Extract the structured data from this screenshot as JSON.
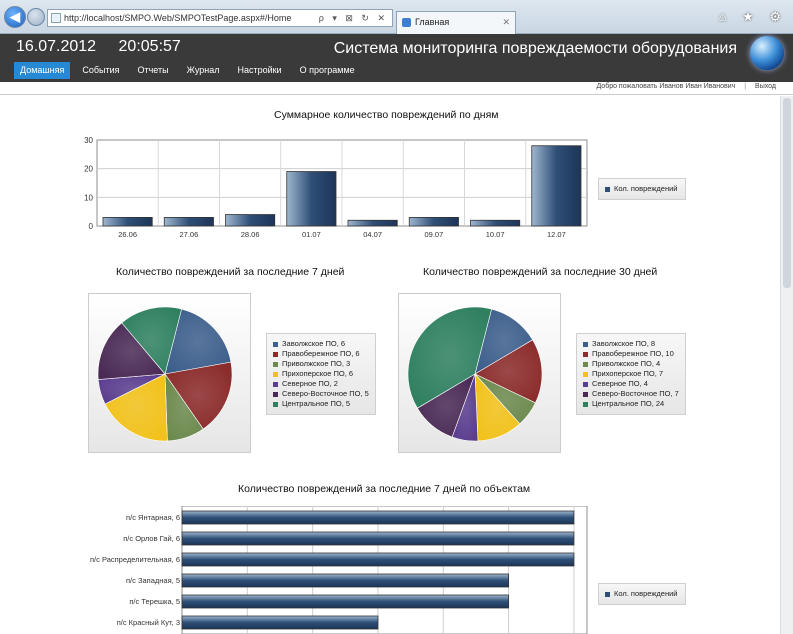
{
  "browser": {
    "url": "http://localhost/SMPO.Web/SMPOTestPage.aspx#/Home",
    "address_actions": "ρ ▾ ⊠ ↻ ✕",
    "tab_title": "Главная",
    "window_icons": "⌂ ★ ⚙"
  },
  "header": {
    "date": "16.07.2012",
    "time": "20:05:57",
    "title": "Система мониторинга повреждаемости оборудования",
    "nav": [
      "Домашняя",
      "События",
      "Отчеты",
      "Журнал",
      "Настройки",
      "О программе"
    ],
    "active_nav": "Домашняя"
  },
  "user_bar": {
    "welcome": "Добро пожаловать Иванов Иван Иванович",
    "logout": "Выход"
  },
  "chart_data": [
    {
      "type": "bar",
      "title": "Суммарное количество повреждений по дням",
      "categories": [
        "26.06",
        "27.06",
        "28.06",
        "01.07",
        "04.07",
        "09.07",
        "10.07",
        "12.07"
      ],
      "series": [
        {
          "name": "Кол. повреждений",
          "values": [
            3,
            3,
            4,
            19,
            2,
            3,
            2,
            28
          ]
        }
      ],
      "ylim": [
        0,
        30
      ],
      "yticks": [
        0,
        10,
        20,
        30
      ],
      "grid": true,
      "legend": "right",
      "color": "#2f4f77"
    },
    {
      "type": "pie",
      "title": "Количество повреждений за последние 7 дней",
      "labels": [
        "Заволжское ПО, 6",
        "Правобережное ПО, 6",
        "Приволжское ПО, 3",
        "Прихоперское ПО, 6",
        "Северное ПО, 2",
        "Северо-Восточное ПО, 5",
        "Центральное ПО, 5"
      ],
      "values": [
        6,
        6,
        3,
        6,
        2,
        5,
        5
      ],
      "colors": [
        "#3d5f8c",
        "#8b2b2b",
        "#6c8a4e",
        "#f2c21a",
        "#5a3d8e",
        "#4a2a55",
        "#2f8060"
      ],
      "legend": "right"
    },
    {
      "type": "pie",
      "title": "Количество повреждений за последние 30 дней",
      "labels": [
        "Заволжское ПО, 8",
        "Правобережное ПО, 10",
        "Приволжское ПО, 4",
        "Прихоперское ПО, 7",
        "Северное ПО, 4",
        "Северо-Восточное ПО, 7",
        "Центральное ПО, 24"
      ],
      "values": [
        8,
        10,
        4,
        7,
        4,
        7,
        24
      ],
      "colors": [
        "#3d5f8c",
        "#8b2b2b",
        "#6c8a4e",
        "#f2c21a",
        "#5a3d8e",
        "#4a2a55",
        "#2f8060"
      ],
      "legend": "right"
    },
    {
      "type": "bar",
      "orientation": "horizontal",
      "title": "Количество повреждений за последние 7 дней по объектам",
      "categories": [
        "п/с Янтарная, 6",
        "п/с Орлов Гай, 6",
        "п/с Распределительная, 6",
        "п/с Западная, 5",
        "п/с Терешка, 5",
        "п/с Красный Кут, 3"
      ],
      "series": [
        {
          "name": "Кол. повреждений",
          "values": [
            6,
            6,
            6,
            5,
            5,
            3
          ]
        }
      ],
      "xlim": [
        0,
        6.2
      ],
      "grid": true,
      "legend": "right",
      "color": "#2f4f77"
    }
  ]
}
